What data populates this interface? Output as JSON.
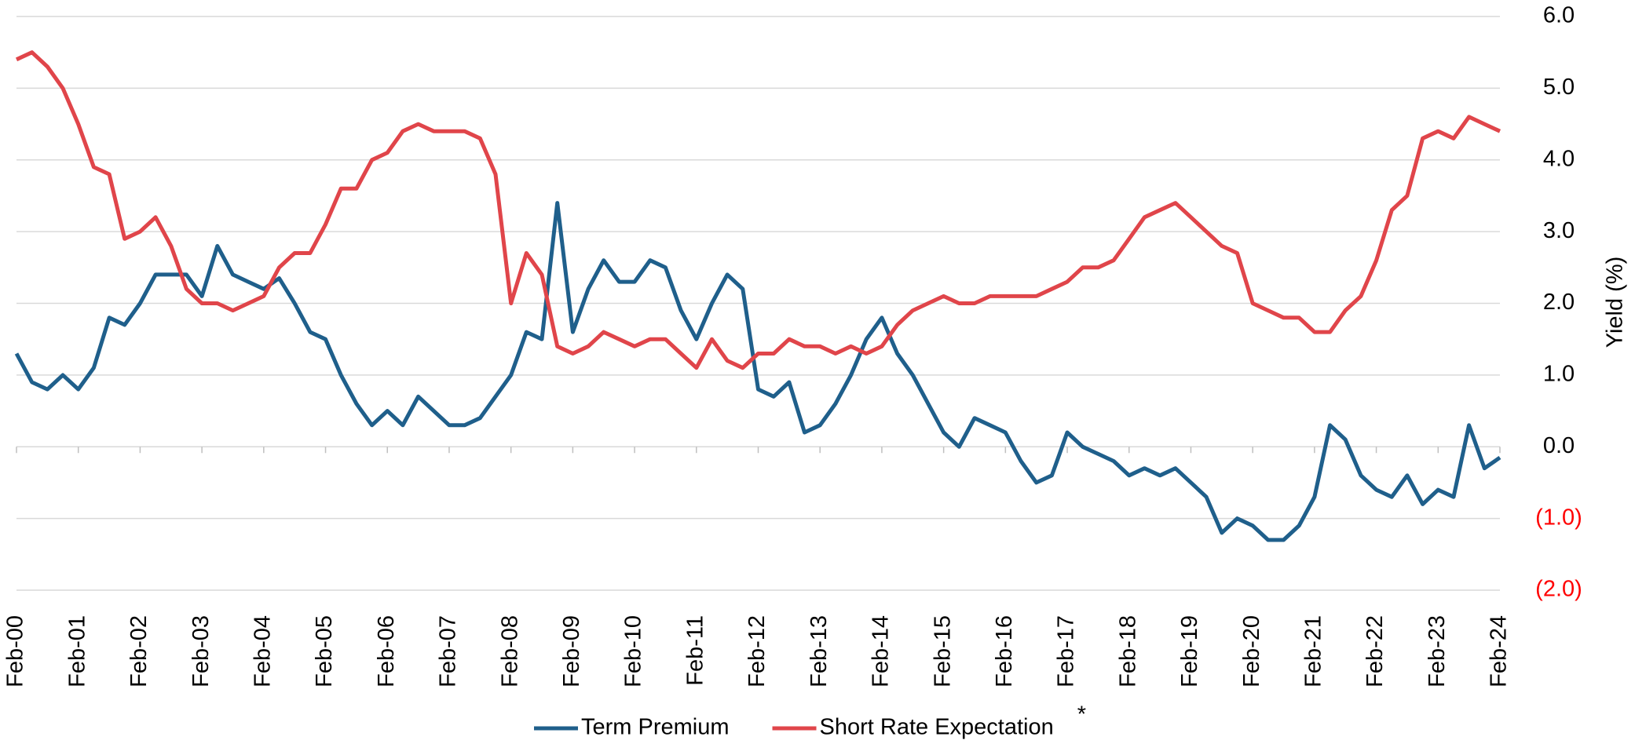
{
  "chart_data": {
    "type": "line",
    "y_axis_label": "Yield (%)",
    "annotation": "*",
    "categories": [
      "Feb-00",
      null,
      null,
      null,
      "Feb-01",
      null,
      null,
      null,
      "Feb-02",
      null,
      null,
      null,
      "Feb-03",
      null,
      null,
      null,
      "Feb-04",
      null,
      null,
      null,
      "Feb-05",
      null,
      null,
      null,
      "Feb-06",
      null,
      null,
      null,
      "Feb-07",
      null,
      null,
      null,
      "Feb-08",
      null,
      null,
      null,
      "Feb-09",
      null,
      null,
      null,
      "Feb-10",
      null,
      null,
      null,
      "Feb-11",
      null,
      null,
      null,
      "Feb-12",
      null,
      null,
      null,
      "Feb-13",
      null,
      null,
      null,
      "Feb-14",
      null,
      null,
      null,
      "Feb-15",
      null,
      null,
      null,
      "Feb-16",
      null,
      null,
      null,
      "Feb-17",
      null,
      null,
      null,
      "Feb-18",
      null,
      null,
      null,
      "Feb-19",
      null,
      null,
      null,
      "Feb-20",
      null,
      null,
      null,
      "Feb-21",
      null,
      null,
      null,
      "Feb-22",
      null,
      null,
      null,
      "Feb-23",
      null,
      null,
      null,
      "Feb-24"
    ],
    "series": [
      {
        "name": "Term Premium",
        "color": "#1f5f8b",
        "values": [
          1.3,
          0.9,
          0.8,
          1.0,
          0.8,
          1.1,
          1.8,
          1.7,
          2.0,
          2.4,
          2.4,
          2.4,
          2.1,
          2.8,
          2.4,
          2.3,
          2.2,
          2.35,
          2.0,
          1.6,
          1.5,
          1.0,
          0.6,
          0.3,
          0.5,
          0.3,
          0.7,
          0.5,
          0.3,
          0.3,
          0.4,
          0.7,
          1.0,
          1.6,
          1.5,
          3.4,
          1.6,
          2.2,
          2.6,
          2.3,
          2.3,
          2.6,
          2.5,
          1.9,
          1.5,
          2.0,
          2.4,
          2.2,
          0.8,
          0.7,
          0.9,
          0.2,
          0.3,
          0.6,
          1.0,
          1.5,
          1.8,
          1.3,
          1.0,
          0.6,
          0.2,
          0.0,
          0.4,
          0.3,
          0.2,
          -0.2,
          -0.5,
          -0.4,
          0.2,
          0.0,
          -0.1,
          -0.2,
          -0.4,
          -0.3,
          -0.4,
          -0.3,
          -0.5,
          -0.7,
          -1.2,
          -1.0,
          -1.1,
          -1.3,
          -1.3,
          -1.1,
          -0.7,
          0.3,
          0.1,
          -0.4,
          -0.6,
          -0.7,
          -0.4,
          -0.8,
          -0.6,
          -0.7,
          0.3,
          -0.3,
          -0.15
        ]
      },
      {
        "name": "Short Rate Expectation",
        "color": "#e0454a",
        "values": [
          5.4,
          5.5,
          5.3,
          5.0,
          4.5,
          3.9,
          3.8,
          2.9,
          3.0,
          3.2,
          2.8,
          2.2,
          2.0,
          2.0,
          1.9,
          2.0,
          2.1,
          2.5,
          2.7,
          2.7,
          3.1,
          3.6,
          3.6,
          4.0,
          4.1,
          4.4,
          4.5,
          4.4,
          4.4,
          4.4,
          4.3,
          3.8,
          2.0,
          2.7,
          2.4,
          1.4,
          1.3,
          1.4,
          1.6,
          1.5,
          1.4,
          1.5,
          1.5,
          1.3,
          1.1,
          1.5,
          1.2,
          1.1,
          1.3,
          1.3,
          1.5,
          1.4,
          1.4,
          1.3,
          1.4,
          1.3,
          1.4,
          1.7,
          1.9,
          2.0,
          2.1,
          2.0,
          2.0,
          2.1,
          2.1,
          2.1,
          2.1,
          2.2,
          2.3,
          2.5,
          2.5,
          2.6,
          2.9,
          3.2,
          3.3,
          3.4,
          3.2,
          3.0,
          2.8,
          2.7,
          2.0,
          1.9,
          1.8,
          1.8,
          1.6,
          1.6,
          1.9,
          2.1,
          2.6,
          3.3,
          3.5,
          4.3,
          4.4,
          4.3,
          4.6,
          4.5,
          4.4
        ]
      }
    ],
    "ylim": [
      -2,
      6
    ],
    "yticks": [
      {
        "value": 6,
        "label": "6.0"
      },
      {
        "value": 5,
        "label": "5.0"
      },
      {
        "value": 4,
        "label": "4.0"
      },
      {
        "value": 3,
        "label": "3.0"
      },
      {
        "value": 2,
        "label": "2.0"
      },
      {
        "value": 1,
        "label": "1.0"
      },
      {
        "value": 0,
        "label": "0.0"
      },
      {
        "value": -1,
        "label": "(1.0)"
      },
      {
        "value": -2,
        "label": "(2.0)"
      }
    ],
    "y_axis_side": "right",
    "negative_tick_color": "#ff0000",
    "grid": true,
    "legend": "bottom"
  }
}
